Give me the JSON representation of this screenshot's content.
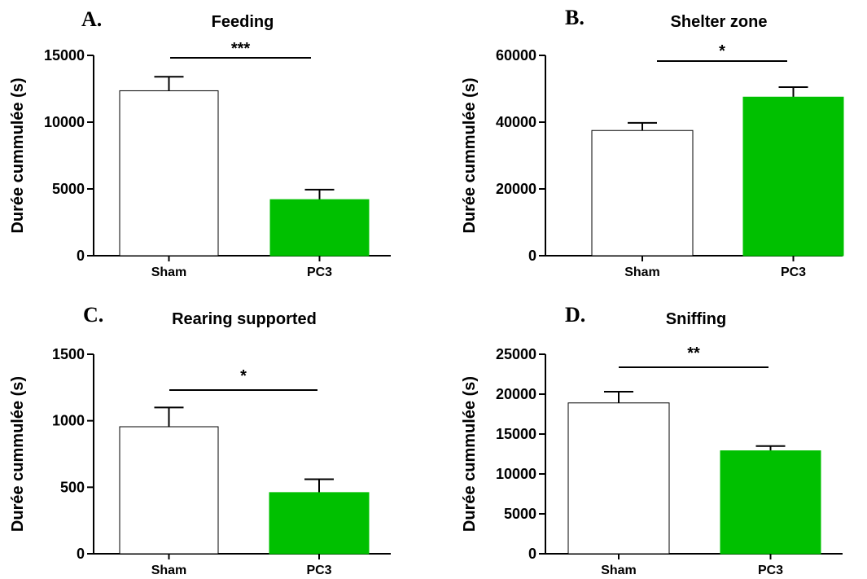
{
  "colors": {
    "sham": "#ffffff",
    "pc3": "#00c000",
    "stroke": "#000000"
  },
  "chart_data": [
    {
      "type": "bar",
      "panel": "A.",
      "title": "Feeding",
      "ylabel": "Durée cummulée (s)",
      "categories": [
        "Sham",
        "PC3"
      ],
      "values": [
        12350,
        4200
      ],
      "errors": [
        1050,
        750
      ],
      "ylim": [
        0,
        15000
      ],
      "yticks": [
        0,
        5000,
        10000,
        15000
      ],
      "significance": "***"
    },
    {
      "type": "bar",
      "panel": "B.",
      "title": "Shelter zone",
      "ylabel": "Durée cummulée (s)",
      "categories": [
        "Sham",
        "PC3"
      ],
      "values": [
        37500,
        47500
      ],
      "errors": [
        2300,
        3000
      ],
      "ylim": [
        0,
        60000
      ],
      "yticks": [
        0,
        20000,
        40000,
        60000
      ],
      "significance": "*"
    },
    {
      "type": "bar",
      "panel": "C.",
      "title": "Rearing supported",
      "ylabel": "Durée cummulée (s)",
      "categories": [
        "Sham",
        "PC3"
      ],
      "values": [
        955,
        460
      ],
      "errors": [
        145,
        100
      ],
      "ylim": [
        0,
        1500
      ],
      "yticks": [
        0,
        500,
        1000,
        1500
      ],
      "significance": "*"
    },
    {
      "type": "bar",
      "panel": "D.",
      "title": "Sniffing",
      "ylabel": "Durée cummulée (s)",
      "categories": [
        "Sham",
        "PC3"
      ],
      "values": [
        18900,
        12900
      ],
      "errors": [
        1400,
        600
      ],
      "ylim": [
        0,
        25000
      ],
      "yticks": [
        0,
        5000,
        10000,
        15000,
        20000,
        25000
      ],
      "significance": "**"
    }
  ]
}
